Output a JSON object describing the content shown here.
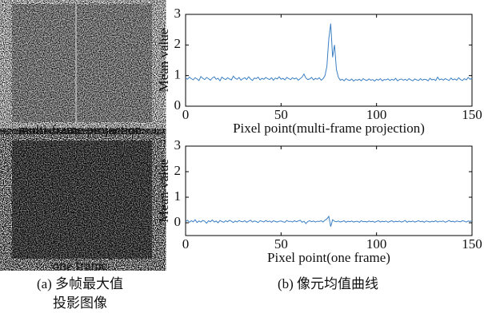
{
  "images": [
    {
      "caption": "multi-frame projection"
    },
    {
      "caption": "one frame"
    }
  ],
  "panel_a_caption": [
    "(a) 多帧最大值",
    "投影图像"
  ],
  "panel_b_caption": "(b) 像元均值曲线",
  "chart_data": [
    {
      "type": "line",
      "x_label": "Pixel point(multi-frame projection)",
      "y_label": "Mean value",
      "x": [
        0,
        1,
        2,
        3,
        4,
        5,
        6,
        7,
        8,
        9,
        10,
        11,
        12,
        13,
        14,
        15,
        16,
        17,
        18,
        19,
        20,
        21,
        22,
        23,
        24,
        25,
        26,
        27,
        28,
        29,
        30,
        31,
        32,
        33,
        34,
        35,
        36,
        37,
        38,
        39,
        40,
        41,
        42,
        43,
        44,
        45,
        46,
        47,
        48,
        49,
        50,
        51,
        52,
        53,
        54,
        55,
        56,
        57,
        58,
        59,
        60,
        61,
        62,
        63,
        64,
        65,
        66,
        67,
        68,
        69,
        70,
        71,
        72,
        73,
        74,
        75,
        76,
        77,
        78,
        79,
        80,
        81,
        82,
        83,
        84,
        85,
        86,
        87,
        88,
        89,
        90,
        91,
        92,
        93,
        94,
        95,
        96,
        97,
        98,
        99,
        100,
        101,
        102,
        103,
        104,
        105,
        106,
        107,
        108,
        109,
        110,
        111,
        112,
        113,
        114,
        115,
        116,
        117,
        118,
        119,
        120,
        121,
        122,
        123,
        124,
        125,
        126,
        127,
        128,
        129,
        130,
        131,
        132,
        133,
        134,
        135,
        136,
        137,
        138,
        139,
        140,
        141,
        142,
        143,
        144,
        145,
        146,
        147,
        148,
        149,
        150
      ],
      "series": [
        {
          "color": "#3b7fc4",
          "values": [
            0.92,
            0.88,
            0.95,
            0.9,
            0.86,
            0.93,
            0.89,
            0.84,
            0.97,
            0.91,
            0.87,
            0.94,
            0.9,
            0.85,
            0.92,
            0.96,
            0.88,
            0.91,
            0.83,
            0.95,
            0.9,
            0.87,
            0.93,
            0.89,
            0.86,
            0.98,
            0.91,
            0.88,
            0.94,
            0.85,
            0.9,
            0.93,
            0.87,
            0.96,
            0.89,
            0.84,
            0.92,
            0.9,
            0.95,
            0.86,
            0.91,
            0.88,
            0.94,
            0.9,
            0.87,
            0.93,
            0.85,
            0.92,
            0.89,
            0.96,
            0.88,
            0.91,
            0.86,
            0.94,
            0.9,
            0.87,
            0.93,
            0.89,
            0.92,
            0.85,
            0.9,
            0.95,
            1.05,
            0.92,
            0.87,
            0.89,
            0.94,
            0.86,
            0.91,
            0.88,
            0.93,
            0.85,
            0.9,
            1.0,
            1.3,
            2.2,
            2.7,
            1.6,
            2.0,
            1.2,
            0.95,
            0.85,
            0.88,
            0.83,
            0.9,
            0.86,
            0.84,
            0.89,
            0.82,
            0.87,
            0.85,
            0.88,
            0.83,
            0.9,
            0.86,
            0.84,
            0.89,
            0.85,
            0.87,
            0.82,
            0.88,
            0.85,
            0.9,
            0.83,
            0.87,
            0.86,
            0.89,
            0.84,
            0.88,
            0.85,
            0.91,
            0.83,
            0.87,
            0.89,
            0.85,
            0.88,
            0.84,
            0.9,
            0.86,
            0.83,
            0.89,
            0.86,
            0.84,
            0.9,
            0.85,
            0.88,
            0.87,
            0.83,
            0.91,
            0.86,
            0.88,
            0.84,
            0.95,
            0.86,
            0.89,
            0.85,
            0.9,
            0.87,
            0.84,
            0.92,
            0.86,
            0.89,
            0.85,
            0.93,
            0.87,
            0.84,
            0.9,
            0.86,
            0.94,
            0.88,
            0.91
          ]
        }
      ],
      "xlim": [
        0,
        150
      ],
      "xticks": [
        0,
        50,
        100,
        150
      ],
      "ylim": [
        0,
        3
      ],
      "yticks": [
        0,
        1,
        2,
        3
      ]
    },
    {
      "type": "line",
      "x_label": "Pixel point(one frame)",
      "y_label": "Mean value",
      "x": [
        0,
        1,
        2,
        3,
        4,
        5,
        6,
        7,
        8,
        9,
        10,
        11,
        12,
        13,
        14,
        15,
        16,
        17,
        18,
        19,
        20,
        21,
        22,
        23,
        24,
        25,
        26,
        27,
        28,
        29,
        30,
        31,
        32,
        33,
        34,
        35,
        36,
        37,
        38,
        39,
        40,
        41,
        42,
        43,
        44,
        45,
        46,
        47,
        48,
        49,
        50,
        51,
        52,
        53,
        54,
        55,
        56,
        57,
        58,
        59,
        60,
        61,
        62,
        63,
        64,
        65,
        66,
        67,
        68,
        69,
        70,
        71,
        72,
        73,
        74,
        75,
        76,
        77,
        78,
        79,
        80,
        81,
        82,
        83,
        84,
        85,
        86,
        87,
        88,
        89,
        90,
        91,
        92,
        93,
        94,
        95,
        96,
        97,
        98,
        99,
        100,
        101,
        102,
        103,
        104,
        105,
        106,
        107,
        108,
        109,
        110,
        111,
        112,
        113,
        114,
        115,
        116,
        117,
        118,
        119,
        120,
        121,
        122,
        123,
        124,
        125,
        126,
        127,
        128,
        129,
        130,
        131,
        132,
        133,
        134,
        135,
        136,
        137,
        138,
        139,
        140,
        141,
        142,
        143,
        144,
        145,
        146,
        147,
        148,
        149,
        150
      ],
      "series": [
        {
          "color": "#3b7fc4",
          "values": [
            0.05,
            0.1,
            0.02,
            0.08,
            0.04,
            0.12,
            0.01,
            0.07,
            0.03,
            0.09,
            0.06,
            -0.02,
            0.08,
            0.04,
            0.11,
            0.03,
            0.07,
            0.0,
            0.09,
            0.05,
            0.02,
            0.08,
            0.04,
            0.1,
            0.06,
            0.01,
            0.07,
            0.03,
            0.09,
            0.05,
            0.04,
            0.08,
            0.02,
            0.06,
            0.1,
            0.03,
            0.07,
            0.05,
            0.01,
            0.08,
            0.06,
            0.03,
            0.09,
            0.04,
            0.07,
            0.02,
            0.08,
            0.05,
            0.03,
            0.06,
            0.07,
            0.04,
            0.02,
            0.09,
            0.05,
            0.06,
            0.03,
            0.08,
            0.04,
            0.07,
            0.1,
            0.02,
            0.06,
            -0.03,
            0.05,
            0.08,
            0.04,
            0.07,
            0.03,
            0.06,
            0.05,
            0.08,
            0.03,
            0.1,
            0.15,
            0.25,
            -0.15,
            0.12,
            0.06,
            0.04,
            0.07,
            0.03,
            0.05,
            0.08,
            0.02,
            0.06,
            0.04,
            0.07,
            0.03,
            0.05,
            0.06,
            0.02,
            0.08,
            0.04,
            0.05,
            0.03,
            0.07,
            0.04,
            0.06,
            0.02,
            0.05,
            0.08,
            0.03,
            0.06,
            0.04,
            0.07,
            0.02,
            0.05,
            0.08,
            0.03,
            0.06,
            0.04,
            0.07,
            0.03,
            0.05,
            0.09,
            0.02,
            0.06,
            0.04,
            0.07,
            0.03,
            0.05,
            0.08,
            0.04,
            0.06,
            0.02,
            0.07,
            0.05,
            0.03,
            0.06,
            0.04,
            0.08,
            0.03,
            0.06,
            0.05,
            0.07,
            0.02,
            0.05,
            0.09,
            0.04,
            0.06,
            0.03,
            0.07,
            0.05,
            0.04,
            0.08,
            0.06,
            0.03,
            0.07,
            0.05,
            0.08
          ]
        }
      ],
      "xlim": [
        0,
        150
      ],
      "xticks": [
        0,
        50,
        100,
        150
      ],
      "ylim": [
        -0.5,
        3
      ],
      "yticks": [
        0,
        1,
        2,
        3
      ]
    }
  ]
}
